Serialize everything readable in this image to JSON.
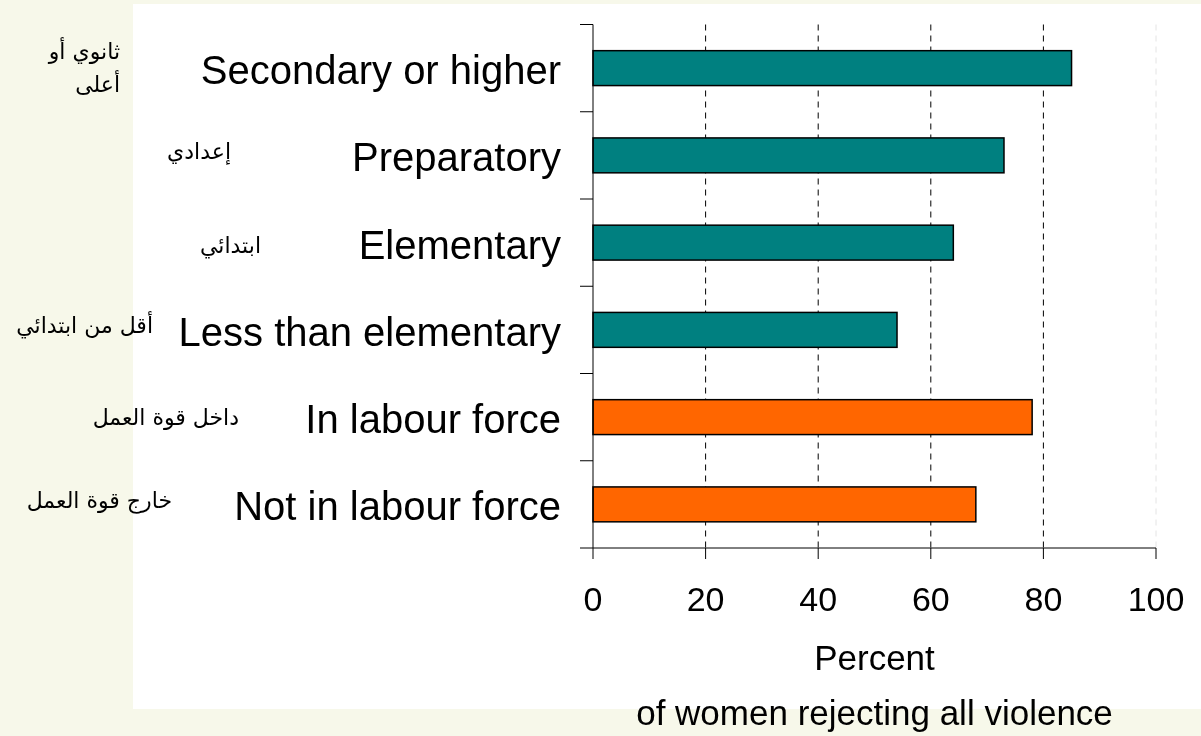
{
  "chart_data": {
    "type": "bar",
    "orientation": "horizontal",
    "categories": [
      "Secondary or higher",
      "Preparatory",
      "Elementary",
      "Less than elementary",
      "In labour force",
      "Not in labour force"
    ],
    "values": [
      85,
      73,
      64,
      54,
      78,
      68
    ],
    "colors": [
      "#008080",
      "#008080",
      "#008080",
      "#008080",
      "#ff6600",
      "#ff6600"
    ],
    "xlim": [
      0,
      100
    ],
    "xticks": [
      0,
      20,
      40,
      60,
      80,
      100
    ],
    "grid": "x",
    "xlabel": "Percent",
    "annotations": [
      "ثانوي أو أعلى",
      "إعدادي",
      "ابتدائي",
      "أقل من ابتدائي",
      "داخل قوة العمل",
      "خارج قوة العمل",
      "of women rejecting all violence"
    ]
  }
}
